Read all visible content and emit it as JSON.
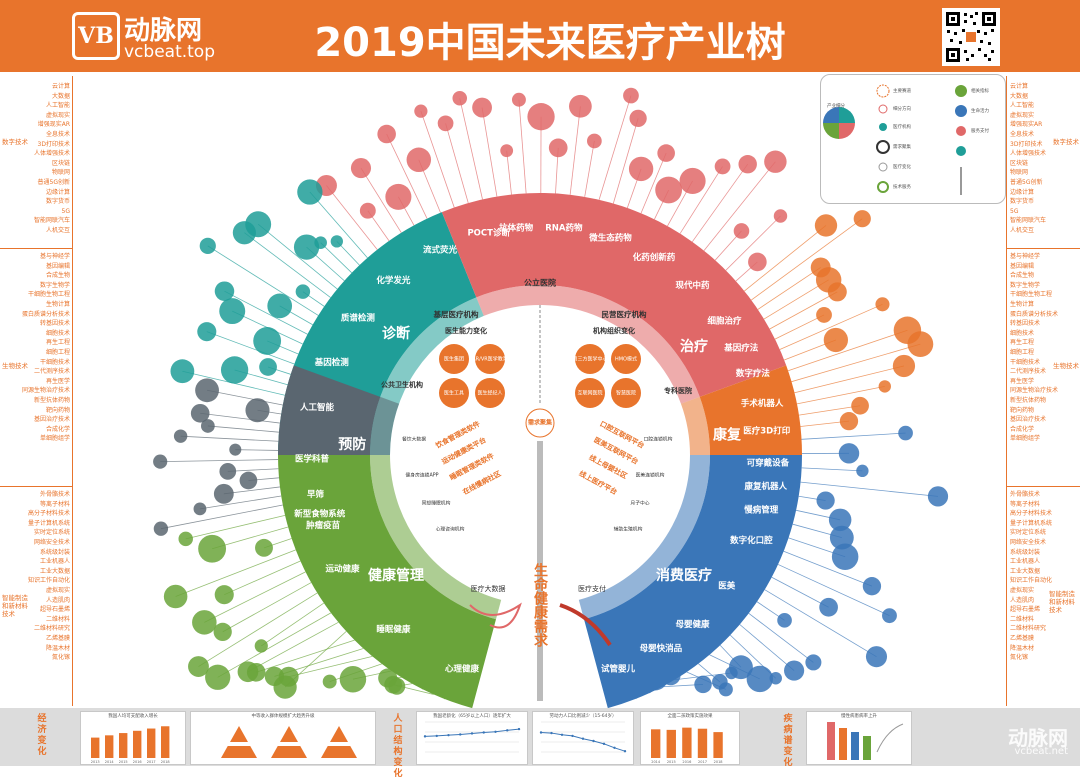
{
  "header": {
    "logo_mark": "VB",
    "logo_cn": "动脉网",
    "logo_en": "vcbeat.top",
    "title": "2019中国未来医疗产业树"
  },
  "colors": {
    "orange": "#e8742c",
    "red": "#e06868",
    "teal": "#1f9e98",
    "green": "#6aa43a",
    "blue": "#3a76b8",
    "gray": "#5a6670"
  },
  "left_panel": [
    {
      "category": "数字技术",
      "items": [
        "云计算",
        "大数据",
        "人工智能",
        "虚拟现实",
        "增强现实AR",
        "全息技术",
        "3D打印技术",
        "人体增强技术",
        "区块链",
        "物联网",
        "普通5G创新",
        "边缘计算",
        "数字货币",
        "5G",
        "智能网联汽车",
        "人机交互"
      ]
    },
    {
      "category": "生物技术",
      "items": [
        "基与神经学",
        "基因编辑",
        "合成生物",
        "数字生物学",
        "干细胞生物工程",
        "生物计算",
        "蛋白质谱分析技术",
        "转基因技术",
        "细胞技术",
        "再生工程",
        "细胞工程",
        "干细胞技术",
        "二代测序技术",
        "再生医学",
        "同源生物治疗技术",
        "新型抗体药物",
        "靶向药物",
        "基因治疗技术",
        "合成化学",
        "单细胞组学"
      ]
    },
    {
      "category": "智能制造和新材料技术",
      "items": [
        "外骨骼技术",
        "等离子材料",
        "高分子材料技术",
        "量子计算机系统",
        "实时定位系统",
        "网络安全技术",
        "系统级封装",
        "工业机器人",
        "工业大数据",
        "知识工作自动化",
        "虚拟现实",
        "人造肌肉",
        "超导石墨烯",
        "二维材料",
        "二维材料研究",
        "乙烯基膜",
        "降温木材",
        "氮化镓"
      ]
    }
  ],
  "right_panel": [
    {
      "category": "数字技术",
      "items": [
        "云计算",
        "大数据",
        "人工智能",
        "虚拟现实",
        "增强现实AR",
        "全息技术",
        "3D打印技术",
        "人体增强技术",
        "区块链",
        "物联网",
        "普通5G创新",
        "边缘计算",
        "数字货币",
        "5G",
        "智能网联汽车",
        "人机交互"
      ]
    },
    {
      "category": "生物技术",
      "items": [
        "基与神经学",
        "基因编辑",
        "合成生物",
        "数字生物学",
        "干细胞生物工程",
        "生物计算",
        "蛋白质谱分析技术",
        "转基因技术",
        "细胞技术",
        "再生工程",
        "细胞工程",
        "干细胞技术",
        "二代测序技术",
        "再生医学",
        "同源生物治疗技术",
        "新型抗体药物",
        "靶向药物",
        "基因治疗技术",
        "合成化学",
        "单细胞组学"
      ]
    },
    {
      "category": "智能制造和新材料技术",
      "items": [
        "外骨骼技术",
        "等离子材料",
        "高分子材料技术",
        "量子计算机系统",
        "实时定位系统",
        "网络安全技术",
        "系统级封装",
        "工业机器人",
        "工业大数据",
        "知识工作自动化",
        "虚拟现实",
        "人造肌肉",
        "超导石墨烯",
        "二维材料",
        "二维材料研究",
        "乙烯基膜",
        "降温木材",
        "氮化镓"
      ]
    }
  ],
  "outer_ring": [
    {
      "label": "诊断",
      "color": "#1f9e98"
    },
    {
      "label": "治疗",
      "color": "#e06868"
    },
    {
      "label": "康复",
      "color": "#e8742c"
    },
    {
      "label": "预防",
      "color": "#5a6670"
    },
    {
      "label": "健康管理",
      "color": "#6aa43a"
    },
    {
      "label": "消费医疗",
      "color": "#3a76b8"
    }
  ],
  "ring_items": [
    {
      "label": "POCT诊断",
      "color": "#1f9e98"
    },
    {
      "label": "流式荧光",
      "color": "#1f9e98"
    },
    {
      "label": "化学发光",
      "color": "#1f9e98"
    },
    {
      "label": "质谱检测",
      "color": "#1f9e98"
    },
    {
      "label": "基因检测",
      "color": "#1f9e98"
    },
    {
      "label": "人工智能",
      "color": "#1f9e98"
    },
    {
      "label": "医学科普",
      "color": "#5a6670"
    },
    {
      "label": "早筛",
      "color": "#5a6670"
    },
    {
      "label": "肿瘤疫苗",
      "color": "#5a6670"
    },
    {
      "label": "新型食物系统",
      "color": "#6aa43a"
    },
    {
      "label": "运动健康",
      "color": "#6aa43a"
    },
    {
      "label": "睡眠健康",
      "color": "#6aa43a"
    },
    {
      "label": "心理健康",
      "color": "#6aa43a"
    },
    {
      "label": "抗体药物",
      "color": "#e06868"
    },
    {
      "label": "RNA药物",
      "color": "#e06868"
    },
    {
      "label": "微生态药物",
      "color": "#e06868"
    },
    {
      "label": "化药创新药",
      "color": "#e06868"
    },
    {
      "label": "现代中药",
      "color": "#e06868"
    },
    {
      "label": "细胞治疗",
      "color": "#e06868"
    },
    {
      "label": "基因疗法",
      "color": "#e06868"
    },
    {
      "label": "数字疗法",
      "color": "#e06868"
    },
    {
      "label": "手术机器人",
      "color": "#e06868"
    },
    {
      "label": "医疗3D打印",
      "color": "#e06868"
    },
    {
      "label": "可穿戴设备",
      "color": "#e8742c"
    },
    {
      "label": "康复机器人",
      "color": "#e8742c"
    },
    {
      "label": "慢病管理",
      "color": "#e8742c"
    },
    {
      "label": "数字化口腔",
      "color": "#3a76b8"
    },
    {
      "label": "医美",
      "color": "#3a76b8"
    },
    {
      "label": "母婴健康",
      "color": "#3a76b8"
    },
    {
      "label": "母婴快消品",
      "color": "#3a76b8"
    },
    {
      "label": "试管婴儿",
      "color": "#3a76b8"
    }
  ],
  "inner": {
    "public_hospital": "公立医院",
    "primary_care": "基层医疗机构",
    "private_care": "民营医疗机构",
    "public_health": "公共卫生机构",
    "specialty": "专科医院",
    "doctor_change": "医生能力变化",
    "org_change": "机构组织变化",
    "demand_core": "需求聚集",
    "medical_bigdata": "医疗大数据",
    "medical_payment": "医疗支付",
    "life_demand": "生命健康需求",
    "circles_left": [
      "医生集团",
      "AR/VR医学教育",
      "医生工具",
      "医生经纪人"
    ],
    "circles_right": [
      "第三方医学中心",
      "HMO模式",
      "互联网医院",
      "智慧医院"
    ],
    "left_text": [
      "饮食管理类软件",
      "运动健康类平台",
      "睡眠管理类软件",
      "在线慢病社区"
    ],
    "right_text": [
      "口腔互联网平台",
      "医美互联网平台",
      "线上母婴社区",
      "线上医疗平台"
    ],
    "left_small": [
      "餐饮大数据",
      "健身房连锁APP",
      "冥想睡眠机构",
      "心理咨询机构"
    ],
    "right_small": [
      "口腔连锁机构",
      "医美连锁机构",
      "月子中心",
      "辅助生殖机构"
    ]
  },
  "legend": {
    "items": [
      "产业细分",
      "主要赛道",
      "细分方向",
      "医疗机构",
      "需求聚集",
      "医疗变化",
      "技术服务",
      "相关指标",
      "生命活力",
      "服务支付"
    ]
  },
  "footer": {
    "cat1": "经济变化",
    "cat2": "人口结构变化",
    "cat3": "疾病谱变化",
    "chart_titles": [
      "我国人均可支配收入增长",
      "中等收入群体规模扩大趋势升级",
      "我国老龄化（65岁以上人口）逐年扩大",
      "劳动力人口比例减少（15-64岁）",
      "全面二孩政策实施效果",
      "慢性病患病率上升"
    ],
    "watermark": "动脉网",
    "watermark_en": "vcbeat.net"
  },
  "chart_data": [
    {
      "type": "bar",
      "title": "我国人均可支配收入增长",
      "categories": [
        "2013",
        "2014",
        "2015",
        "2016",
        "2017",
        "2018"
      ],
      "values": [
        18,
        20,
        22,
        24,
        26,
        28
      ],
      "ylim": [
        0,
        30
      ]
    },
    {
      "type": "line",
      "title": "我国老龄化（65岁以上人口）逐年扩大",
      "x": [
        "2010",
        "2011",
        "2012",
        "2013",
        "2014",
        "2015",
        "2016",
        "2017",
        "2018"
      ],
      "series": [
        {
          "values": [
            8.9,
            9.1,
            9.4,
            9.7,
            10.1,
            10.5,
            10.8,
            11.4,
            11.9
          ]
        }
      ],
      "ylim": [
        0,
        14
      ]
    },
    {
      "type": "line",
      "title": "劳动力人口比例减少（15-64岁）",
      "x": [
        "2010",
        "2011",
        "2012",
        "2013",
        "2014",
        "2015",
        "2016",
        "2017",
        "2018"
      ],
      "series": [
        {
          "values": [
            74.5,
            74.4,
            74.1,
            73.9,
            73.4,
            73.0,
            72.5,
            71.8,
            71.2
          ]
        }
      ],
      "ylim": [
        70,
        76
      ]
    },
    {
      "type": "bar",
      "title": "全面二孩政策实施效果",
      "categories": [
        "2014",
        "2015",
        "2016",
        "2017",
        "2018"
      ],
      "values": [
        1687,
        1655,
        1786,
        1723,
        1523
      ],
      "ylim": [
        0,
        2000
      ]
    }
  ]
}
